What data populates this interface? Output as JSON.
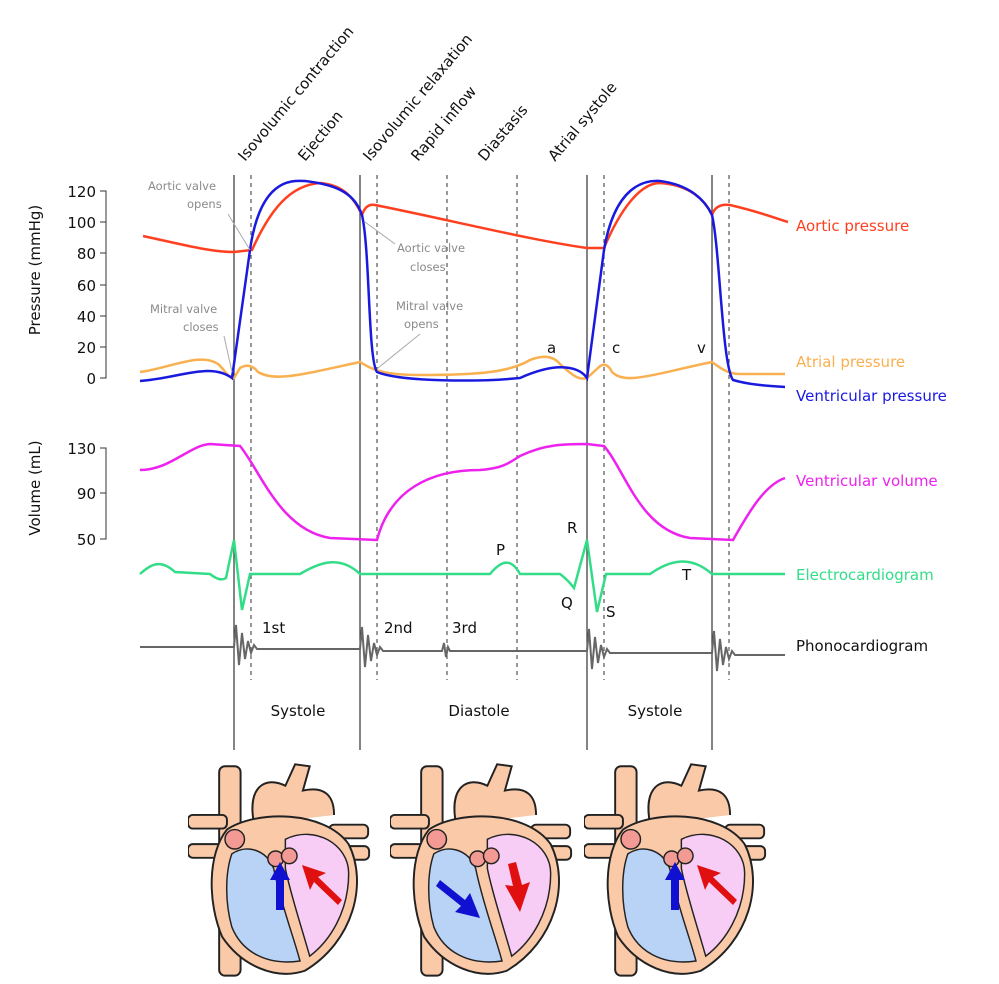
{
  "phases": [
    "Isovolumic contraction",
    "Ejection",
    "Isovolumic relaxation",
    "Rapid inflow",
    "Diastasis",
    "Atrial systole"
  ],
  "axes": {
    "pressure": {
      "title": "Pressure (mmHg)",
      "ticks": [
        "120",
        "100",
        "80",
        "60",
        "40",
        "20",
        "0"
      ]
    },
    "volume": {
      "title": "Volume (mL)",
      "ticks": [
        "130",
        "90",
        "50"
      ]
    }
  },
  "curves": [
    "Aortic pressure",
    "Atrial pressure",
    "Ventricular pressure",
    "Ventricular volume",
    "Electrocardiogram",
    "Phonocardiogram"
  ],
  "annotations": {
    "aortic_opens": [
      "Aortic valve",
      "opens"
    ],
    "aortic_closes": [
      "Aortic valve",
      "closes"
    ],
    "mitral_closes": [
      "Mitral valve",
      "closes"
    ],
    "mitral_opens": [
      "Mitral valve",
      "opens"
    ]
  },
  "waves": [
    "a",
    "c",
    "v",
    "P",
    "R",
    "Q",
    "S",
    "T"
  ],
  "sounds": [
    "1st",
    "2nd",
    "3rd"
  ],
  "periods": [
    "Systole",
    "Diastole",
    "Systole"
  ]
}
